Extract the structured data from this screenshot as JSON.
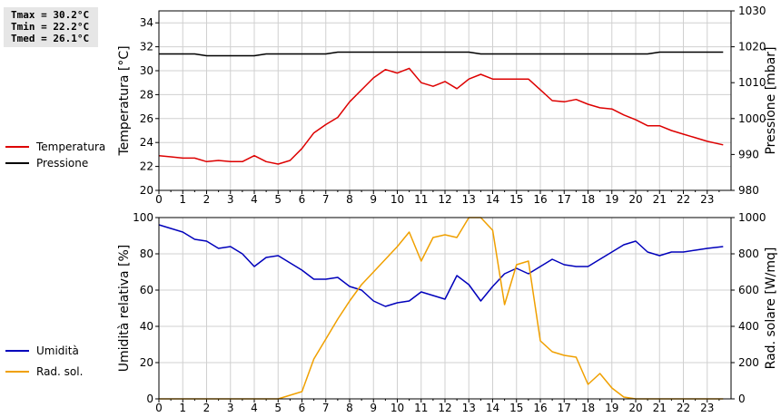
{
  "stats": {
    "tmax": "Tmax = 30.2°C",
    "tmin": "Tmin = 22.2°C",
    "tmed": "Tmed = 26.1°C"
  },
  "chart_data": [
    {
      "type": "line",
      "ylabel": "Temperatura [°C]",
      "y2label": "Pressione [mbar]",
      "xlim": [
        0,
        24
      ],
      "xticks": [
        "0",
        "1",
        "2",
        "3",
        "4",
        "5",
        "6",
        "7",
        "8",
        "9",
        "10",
        "11",
        "12",
        "13",
        "14",
        "15",
        "16",
        "17",
        "18",
        "19",
        "20",
        "21",
        "22",
        "23"
      ],
      "ylim": [
        20,
        35
      ],
      "yticks": [
        "20",
        "22",
        "24",
        "26",
        "28",
        "30",
        "32",
        "34"
      ],
      "y2lim": [
        980,
        1030
      ],
      "y2ticks": [
        "980",
        "990",
        "1000",
        "1010",
        "1020",
        "1030"
      ],
      "grid": true,
      "legend": [
        {
          "name": "Temperatura",
          "color": "#dd0000"
        },
        {
          "name": "Pressione",
          "color": "#000000"
        }
      ],
      "series": [
        {
          "name": "Temperatura",
          "axis": "left",
          "color": "#dd0000",
          "x": [
            0,
            0.5,
            1,
            1.5,
            2,
            2.5,
            3,
            3.5,
            4,
            4.5,
            5,
            5.5,
            6,
            6.5,
            7,
            7.5,
            8,
            8.5,
            9,
            9.5,
            10,
            10.5,
            11,
            11.5,
            12,
            12.5,
            13,
            13.5,
            14,
            14.5,
            15,
            15.5,
            16,
            16.5,
            17,
            17.5,
            18,
            18.5,
            19,
            19.5,
            20,
            20.5,
            21,
            21.5,
            22,
            22.5,
            23,
            23.67
          ],
          "y": [
            22.9,
            22.8,
            22.7,
            22.7,
            22.4,
            22.5,
            22.4,
            22.4,
            22.9,
            22.4,
            22.2,
            22.5,
            23.5,
            24.8,
            25.5,
            26.1,
            27.4,
            28.4,
            29.4,
            30.1,
            29.8,
            30.2,
            29.0,
            28.7,
            29.1,
            28.5,
            29.3,
            29.7,
            29.3,
            29.3,
            29.3,
            29.3,
            28.4,
            27.5,
            27.4,
            27.6,
            27.2,
            26.9,
            26.8,
            26.3,
            25.9,
            25.4,
            25.4,
            25.0,
            24.7,
            24.4,
            24.1,
            23.8
          ]
        },
        {
          "name": "Pressione",
          "axis": "right",
          "color": "#000000",
          "x": [
            0,
            1.5,
            2,
            4,
            4.5,
            7,
            7.5,
            13,
            13.5,
            20.5,
            21,
            23.67
          ],
          "y": [
            1018,
            1018,
            1017.5,
            1017.5,
            1018,
            1018,
            1018.5,
            1018.5,
            1018,
            1018,
            1018.5,
            1018.5
          ]
        }
      ]
    },
    {
      "type": "line",
      "ylabel": "Umidità relativa [%]",
      "y2label": "Rad. solare [W/mq]",
      "xlim": [
        0,
        24
      ],
      "xticks": [
        "0",
        "1",
        "2",
        "3",
        "4",
        "5",
        "6",
        "7",
        "8",
        "9",
        "10",
        "11",
        "12",
        "13",
        "14",
        "15",
        "16",
        "17",
        "18",
        "19",
        "20",
        "21",
        "22",
        "23"
      ],
      "ylim": [
        0,
        100
      ],
      "yticks": [
        "0",
        "20",
        "40",
        "60",
        "80",
        "100"
      ],
      "y2lim": [
        0,
        1000
      ],
      "y2ticks": [
        "0",
        "200",
        "400",
        "600",
        "800",
        "1000"
      ],
      "grid": true,
      "legend": [
        {
          "name": "Umidità",
          "color": "#0000bb"
        },
        {
          "name": "Rad. sol.",
          "color": "#f0a000"
        }
      ],
      "series": [
        {
          "name": "Umidità",
          "axis": "left",
          "color": "#0000bb",
          "x": [
            0,
            0.5,
            1,
            1.5,
            2,
            2.5,
            3,
            3.5,
            4,
            4.5,
            5,
            5.5,
            6,
            6.5,
            7,
            7.5,
            8,
            8.5,
            9,
            9.5,
            10,
            10.5,
            11,
            11.5,
            12,
            12.5,
            13,
            13.5,
            14,
            14.5,
            15,
            15.5,
            16,
            16.5,
            17,
            17.5,
            18,
            18.5,
            19,
            19.5,
            20,
            20.5,
            21,
            21.5,
            22,
            22.5,
            23,
            23.67
          ],
          "y": [
            96,
            94,
            92,
            88,
            87,
            83,
            84,
            80,
            73,
            78,
            79,
            75,
            71,
            66,
            66,
            67,
            62,
            60,
            54,
            51,
            53,
            54,
            59,
            57,
            55,
            68,
            63,
            54,
            62,
            69,
            72,
            69,
            73,
            77,
            74,
            73,
            73,
            77,
            81,
            85,
            87,
            81,
            79,
            81,
            81,
            82,
            83,
            84
          ]
        },
        {
          "name": "Rad. sol.",
          "axis": "right",
          "color": "#f0a000",
          "x": [
            0,
            0.5,
            1,
            1.5,
            2,
            2.5,
            3,
            3.5,
            4,
            4.5,
            5,
            5.5,
            6,
            6.5,
            7,
            7.5,
            8,
            8.5,
            9,
            9.5,
            10,
            10.5,
            11,
            11.5,
            12,
            12.5,
            13,
            13.5,
            14,
            14.5,
            15,
            15.5,
            16,
            16.5,
            17,
            17.5,
            18,
            18.5,
            19,
            19.5,
            20,
            20.5,
            21,
            21.5,
            22,
            22.5,
            23,
            23.67
          ],
          "y": [
            0,
            0,
            0,
            0,
            0,
            0,
            0,
            0,
            0,
            0,
            0,
            20,
            40,
            220,
            330,
            440,
            540,
            630,
            700,
            770,
            840,
            920,
            760,
            890,
            905,
            890,
            1010,
            1010,
            930,
            520,
            740,
            760,
            320,
            260,
            240,
            230,
            80,
            140,
            60,
            10,
            0,
            0,
            0,
            0,
            0,
            0,
            0,
            0
          ]
        }
      ]
    }
  ]
}
